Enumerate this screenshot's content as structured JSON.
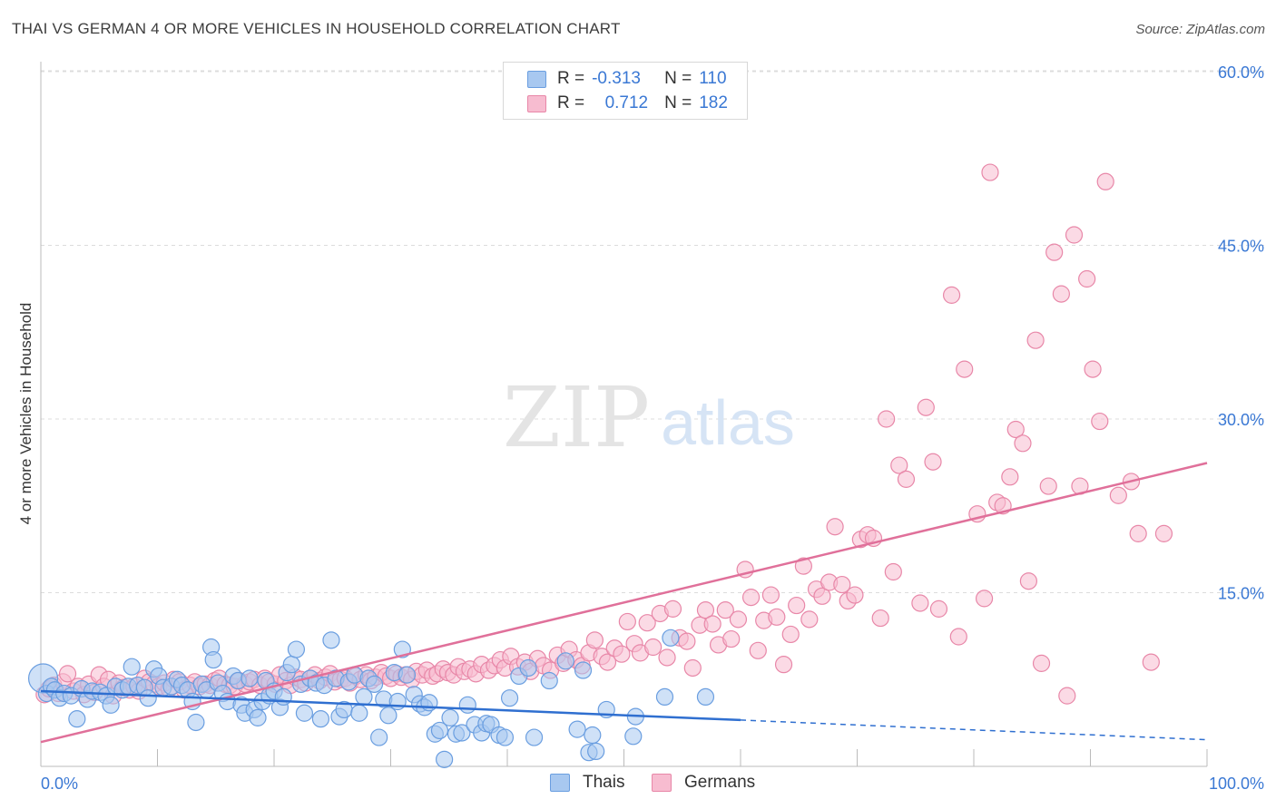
{
  "header": {
    "title": "THAI VS GERMAN 4 OR MORE VEHICLES IN HOUSEHOLD CORRELATION CHART",
    "source": "Source: ZipAtlas.com"
  },
  "watermark": {
    "zip": "ZIP",
    "atlas": "atlas"
  },
  "legend": {
    "rows": [
      {
        "r_label": "R =",
        "r_value": "-0.313",
        "n_label": "N =",
        "n_value": "110",
        "color": "#a8c8f0",
        "border": "#6a9ee0"
      },
      {
        "r_label": "R =",
        "r_value": "0.712",
        "n_label": "N =",
        "n_value": "182",
        "color": "#f7bcd0",
        "border": "#e887a8"
      }
    ]
  },
  "bottom_legend": [
    {
      "label": "Thais",
      "color": "#a8c8f0",
      "border": "#6a9ee0"
    },
    {
      "label": "Germans",
      "color": "#f7bcd0",
      "border": "#e887a8"
    }
  ],
  "chart_data": {
    "type": "scatter",
    "title": "THAI VS GERMAN 4 OR MORE VEHICLES IN HOUSEHOLD CORRELATION CHART",
    "xlabel": "",
    "ylabel": "4 or more Vehicles in Household",
    "xlim": [
      0,
      100
    ],
    "ylim": [
      0,
      62
    ],
    "x_tick_labels": [
      "0.0%",
      "100.0%"
    ],
    "y_ticks": [
      15,
      30,
      45,
      60
    ],
    "y_tick_labels": [
      "15.0%",
      "30.0%",
      "45.0%",
      "60.0%"
    ],
    "grid": true,
    "legend_position": "top-center",
    "series": [
      {
        "name": "Thais",
        "color": "#6a9ee0",
        "fill": "#a8c8f0",
        "trend": {
          "x0": 0,
          "y0": 6.5,
          "x1": 60,
          "y1": 4.0,
          "dash_to_x": 100,
          "dash_to_y": 2.3,
          "color": "#2f6fd0"
        },
        "points": [
          [
            0.2,
            7.6
          ],
          [
            0.5,
            6.3
          ],
          [
            0.9,
            6.9
          ],
          [
            1.2,
            6.6
          ],
          [
            1.6,
            5.9
          ],
          [
            2.0,
            6.3
          ],
          [
            2.6,
            6.1
          ],
          [
            3.1,
            4.1
          ],
          [
            3.5,
            6.7
          ],
          [
            4.0,
            5.8
          ],
          [
            4.4,
            6.5
          ],
          [
            5.1,
            6.4
          ],
          [
            5.6,
            6.1
          ],
          [
            6.0,
            5.3
          ],
          [
            6.4,
            6.9
          ],
          [
            7.0,
            6.6
          ],
          [
            7.5,
            6.9
          ],
          [
            7.8,
            8.6
          ],
          [
            8.3,
            7.0
          ],
          [
            8.9,
            6.8
          ],
          [
            9.2,
            5.9
          ],
          [
            9.7,
            8.4
          ],
          [
            10.1,
            7.8
          ],
          [
            10.5,
            6.8
          ],
          [
            11.2,
            6.9
          ],
          [
            11.7,
            7.5
          ],
          [
            12.1,
            7.0
          ],
          [
            12.6,
            6.6
          ],
          [
            13.0,
            5.6
          ],
          [
            13.3,
            3.8
          ],
          [
            13.8,
            7.1
          ],
          [
            14.2,
            6.6
          ],
          [
            14.6,
            10.3
          ],
          [
            14.8,
            9.2
          ],
          [
            15.2,
            7.2
          ],
          [
            15.6,
            6.3
          ],
          [
            16.0,
            5.6
          ],
          [
            16.5,
            7.8
          ],
          [
            16.9,
            7.4
          ],
          [
            17.2,
            5.3
          ],
          [
            17.5,
            4.6
          ],
          [
            17.9,
            7.6
          ],
          [
            18.3,
            4.9
          ],
          [
            18.6,
            4.2
          ],
          [
            19.0,
            5.6
          ],
          [
            19.3,
            7.4
          ],
          [
            19.6,
            6.1
          ],
          [
            20.0,
            6.5
          ],
          [
            20.5,
            5.1
          ],
          [
            20.8,
            6.0
          ],
          [
            21.1,
            8.1
          ],
          [
            21.5,
            8.8
          ],
          [
            21.9,
            10.1
          ],
          [
            22.3,
            7.1
          ],
          [
            22.6,
            4.6
          ],
          [
            23.1,
            7.6
          ],
          [
            23.6,
            7.2
          ],
          [
            24.0,
            4.1
          ],
          [
            24.3,
            7.0
          ],
          [
            24.9,
            10.9
          ],
          [
            25.3,
            7.6
          ],
          [
            25.6,
            4.3
          ],
          [
            26.0,
            4.9
          ],
          [
            26.4,
            7.3
          ],
          [
            26.9,
            7.9
          ],
          [
            27.3,
            4.6
          ],
          [
            27.7,
            6.0
          ],
          [
            28.1,
            7.6
          ],
          [
            28.6,
            7.1
          ],
          [
            29.0,
            2.5
          ],
          [
            29.4,
            5.8
          ],
          [
            29.8,
            4.4
          ],
          [
            30.3,
            8.1
          ],
          [
            30.6,
            5.6
          ],
          [
            31.0,
            10.1
          ],
          [
            31.4,
            7.9
          ],
          [
            32.0,
            6.2
          ],
          [
            32.5,
            5.4
          ],
          [
            32.9,
            5.1
          ],
          [
            33.3,
            5.5
          ],
          [
            33.8,
            2.8
          ],
          [
            34.2,
            3.1
          ],
          [
            34.6,
            0.6
          ],
          [
            35.1,
            4.2
          ],
          [
            35.6,
            2.8
          ],
          [
            36.1,
            2.9
          ],
          [
            36.6,
            5.3
          ],
          [
            37.2,
            3.6
          ],
          [
            37.8,
            2.9
          ],
          [
            38.2,
            3.7
          ],
          [
            38.6,
            3.6
          ],
          [
            39.3,
            2.7
          ],
          [
            39.8,
            2.5
          ],
          [
            40.2,
            5.9
          ],
          [
            41.0,
            7.8
          ],
          [
            41.8,
            8.5
          ],
          [
            42.3,
            2.5
          ],
          [
            43.6,
            7.4
          ],
          [
            45.0,
            9.1
          ],
          [
            46.0,
            3.2
          ],
          [
            46.5,
            8.3
          ],
          [
            47.0,
            1.2
          ],
          [
            47.3,
            2.7
          ],
          [
            47.6,
            1.3
          ],
          [
            48.5,
            4.9
          ],
          [
            50.8,
            2.6
          ],
          [
            51.0,
            4.3
          ],
          [
            53.5,
            6.0
          ],
          [
            54.0,
            11.1
          ],
          [
            57.0,
            6.0
          ]
        ]
      },
      {
        "name": "Germans",
        "color": "#e887a8",
        "fill": "#f7bcd0",
        "trend": {
          "x0": 0,
          "y0": 2.1,
          "x1": 100,
          "y1": 26.2,
          "color": "#e0709a"
        },
        "points": [
          [
            0.3,
            6.2
          ],
          [
            0.7,
            6.7
          ],
          [
            1.1,
            7.0
          ],
          [
            1.5,
            6.3
          ],
          [
            1.9,
            7.3
          ],
          [
            2.3,
            8.0
          ],
          [
            2.8,
            6.5
          ],
          [
            3.2,
            6.9
          ],
          [
            3.7,
            6.2
          ],
          [
            4.1,
            7.1
          ],
          [
            4.6,
            6.4
          ],
          [
            5.0,
            7.9
          ],
          [
            5.4,
            6.9
          ],
          [
            5.8,
            7.5
          ],
          [
            6.2,
            6.1
          ],
          [
            6.7,
            7.2
          ],
          [
            7.1,
            6.8
          ],
          [
            7.6,
            6.6
          ],
          [
            8.0,
            6.9
          ],
          [
            8.4,
            6.5
          ],
          [
            8.9,
            7.6
          ],
          [
            9.3,
            7.3
          ],
          [
            9.7,
            7.1
          ],
          [
            10.1,
            6.9
          ],
          [
            10.6,
            7.2
          ],
          [
            11.0,
            6.7
          ],
          [
            11.4,
            7.5
          ],
          [
            11.9,
            7.3
          ],
          [
            12.3,
            6.6
          ],
          [
            12.8,
            7.0
          ],
          [
            13.2,
            7.3
          ],
          [
            13.6,
            6.9
          ],
          [
            14.1,
            7.1
          ],
          [
            14.5,
            7.0
          ],
          [
            14.9,
            7.4
          ],
          [
            15.3,
            7.6
          ],
          [
            15.8,
            7.1
          ],
          [
            16.2,
            7.0
          ],
          [
            16.6,
            6.9
          ],
          [
            17.0,
            7.4
          ],
          [
            17.5,
            7.1
          ],
          [
            17.9,
            7.3
          ],
          [
            18.3,
            7.5
          ],
          [
            18.8,
            7.0
          ],
          [
            19.2,
            7.6
          ],
          [
            19.6,
            7.3
          ],
          [
            20.1,
            7.1
          ],
          [
            20.5,
            7.9
          ],
          [
            21.0,
            7.4
          ],
          [
            21.4,
            7.0
          ],
          [
            21.8,
            7.7
          ],
          [
            22.3,
            7.5
          ],
          [
            22.7,
            7.2
          ],
          [
            23.1,
            7.6
          ],
          [
            23.5,
            7.9
          ],
          [
            23.9,
            7.4
          ],
          [
            24.4,
            7.7
          ],
          [
            24.8,
            8.0
          ],
          [
            25.2,
            7.3
          ],
          [
            25.7,
            7.5
          ],
          [
            26.1,
            7.6
          ],
          [
            26.5,
            7.2
          ],
          [
            27.0,
            7.8
          ],
          [
            27.4,
            7.5
          ],
          [
            27.9,
            7.9
          ],
          [
            28.3,
            7.4
          ],
          [
            28.7,
            7.7
          ],
          [
            29.2,
            8.1
          ],
          [
            29.6,
            7.8
          ],
          [
            30.0,
            7.6
          ],
          [
            30.5,
            8.0
          ],
          [
            30.9,
            7.7
          ],
          [
            31.3,
            7.9
          ],
          [
            31.8,
            7.5
          ],
          [
            32.2,
            8.2
          ],
          [
            32.7,
            7.9
          ],
          [
            33.1,
            8.3
          ],
          [
            33.6,
            7.8
          ],
          [
            34.0,
            8.0
          ],
          [
            34.5,
            8.4
          ],
          [
            34.9,
            8.1
          ],
          [
            35.4,
            7.9
          ],
          [
            35.8,
            8.6
          ],
          [
            36.3,
            8.2
          ],
          [
            36.8,
            8.4
          ],
          [
            37.3,
            8.0
          ],
          [
            37.8,
            8.8
          ],
          [
            38.4,
            8.3
          ],
          [
            38.9,
            8.7
          ],
          [
            39.4,
            9.2
          ],
          [
            39.8,
            8.5
          ],
          [
            40.3,
            9.5
          ],
          [
            40.9,
            8.6
          ],
          [
            41.5,
            9.0
          ],
          [
            42.0,
            8.2
          ],
          [
            42.6,
            9.3
          ],
          [
            43.1,
            8.7
          ],
          [
            43.7,
            8.3
          ],
          [
            44.3,
            9.6
          ],
          [
            44.8,
            8.9
          ],
          [
            45.3,
            10.1
          ],
          [
            45.9,
            9.2
          ],
          [
            46.4,
            8.7
          ],
          [
            47.0,
            9.8
          ],
          [
            47.5,
            10.9
          ],
          [
            48.1,
            9.5
          ],
          [
            48.6,
            9.0
          ],
          [
            49.2,
            10.2
          ],
          [
            49.8,
            9.7
          ],
          [
            50.3,
            12.5
          ],
          [
            50.9,
            10.6
          ],
          [
            51.4,
            9.8
          ],
          [
            52.0,
            12.4
          ],
          [
            52.5,
            10.3
          ],
          [
            53.1,
            13.2
          ],
          [
            53.7,
            9.4
          ],
          [
            54.2,
            13.6
          ],
          [
            54.8,
            11.1
          ],
          [
            55.4,
            10.8
          ],
          [
            55.9,
            8.5
          ],
          [
            56.5,
            12.2
          ],
          [
            57.0,
            13.5
          ],
          [
            57.6,
            12.3
          ],
          [
            58.1,
            10.5
          ],
          [
            58.7,
            13.5
          ],
          [
            59.2,
            11.0
          ],
          [
            59.8,
            12.7
          ],
          [
            60.4,
            17.0
          ],
          [
            60.9,
            14.6
          ],
          [
            61.5,
            10.0
          ],
          [
            62.0,
            12.6
          ],
          [
            62.6,
            14.8
          ],
          [
            63.1,
            12.9
          ],
          [
            63.7,
            8.8
          ],
          [
            64.3,
            11.4
          ],
          [
            64.8,
            13.9
          ],
          [
            65.4,
            17.3
          ],
          [
            65.9,
            12.7
          ],
          [
            66.5,
            15.3
          ],
          [
            67.0,
            14.7
          ],
          [
            67.6,
            15.9
          ],
          [
            68.1,
            20.7
          ],
          [
            68.7,
            15.7
          ],
          [
            69.2,
            14.3
          ],
          [
            69.8,
            14.8
          ],
          [
            70.3,
            19.6
          ],
          [
            70.9,
            20.0
          ],
          [
            71.4,
            19.7
          ],
          [
            72.0,
            12.8
          ],
          [
            72.5,
            30.0
          ],
          [
            73.1,
            16.8
          ],
          [
            73.6,
            26.0
          ],
          [
            74.2,
            24.8
          ],
          [
            75.4,
            14.1
          ],
          [
            75.9,
            31.0
          ],
          [
            76.5,
            26.3
          ],
          [
            77.0,
            13.6
          ],
          [
            78.1,
            40.7
          ],
          [
            78.7,
            11.2
          ],
          [
            79.2,
            34.3
          ],
          [
            80.3,
            21.8
          ],
          [
            80.9,
            14.5
          ],
          [
            81.4,
            51.3
          ],
          [
            82.0,
            22.8
          ],
          [
            82.5,
            22.5
          ],
          [
            83.1,
            25.0
          ],
          [
            83.6,
            29.1
          ],
          [
            84.2,
            27.9
          ],
          [
            84.7,
            16.0
          ],
          [
            85.3,
            36.8
          ],
          [
            85.8,
            8.9
          ],
          [
            86.4,
            24.2
          ],
          [
            86.9,
            44.4
          ],
          [
            87.5,
            40.8
          ],
          [
            88.0,
            6.1
          ],
          [
            88.6,
            45.9
          ],
          [
            89.1,
            24.2
          ],
          [
            89.7,
            42.1
          ],
          [
            90.2,
            34.3
          ],
          [
            90.8,
            29.8
          ],
          [
            91.3,
            50.5
          ],
          [
            92.4,
            23.4
          ],
          [
            93.5,
            24.6
          ],
          [
            94.1,
            20.1
          ],
          [
            95.2,
            9.0
          ],
          [
            96.3,
            20.1
          ]
        ]
      }
    ]
  }
}
